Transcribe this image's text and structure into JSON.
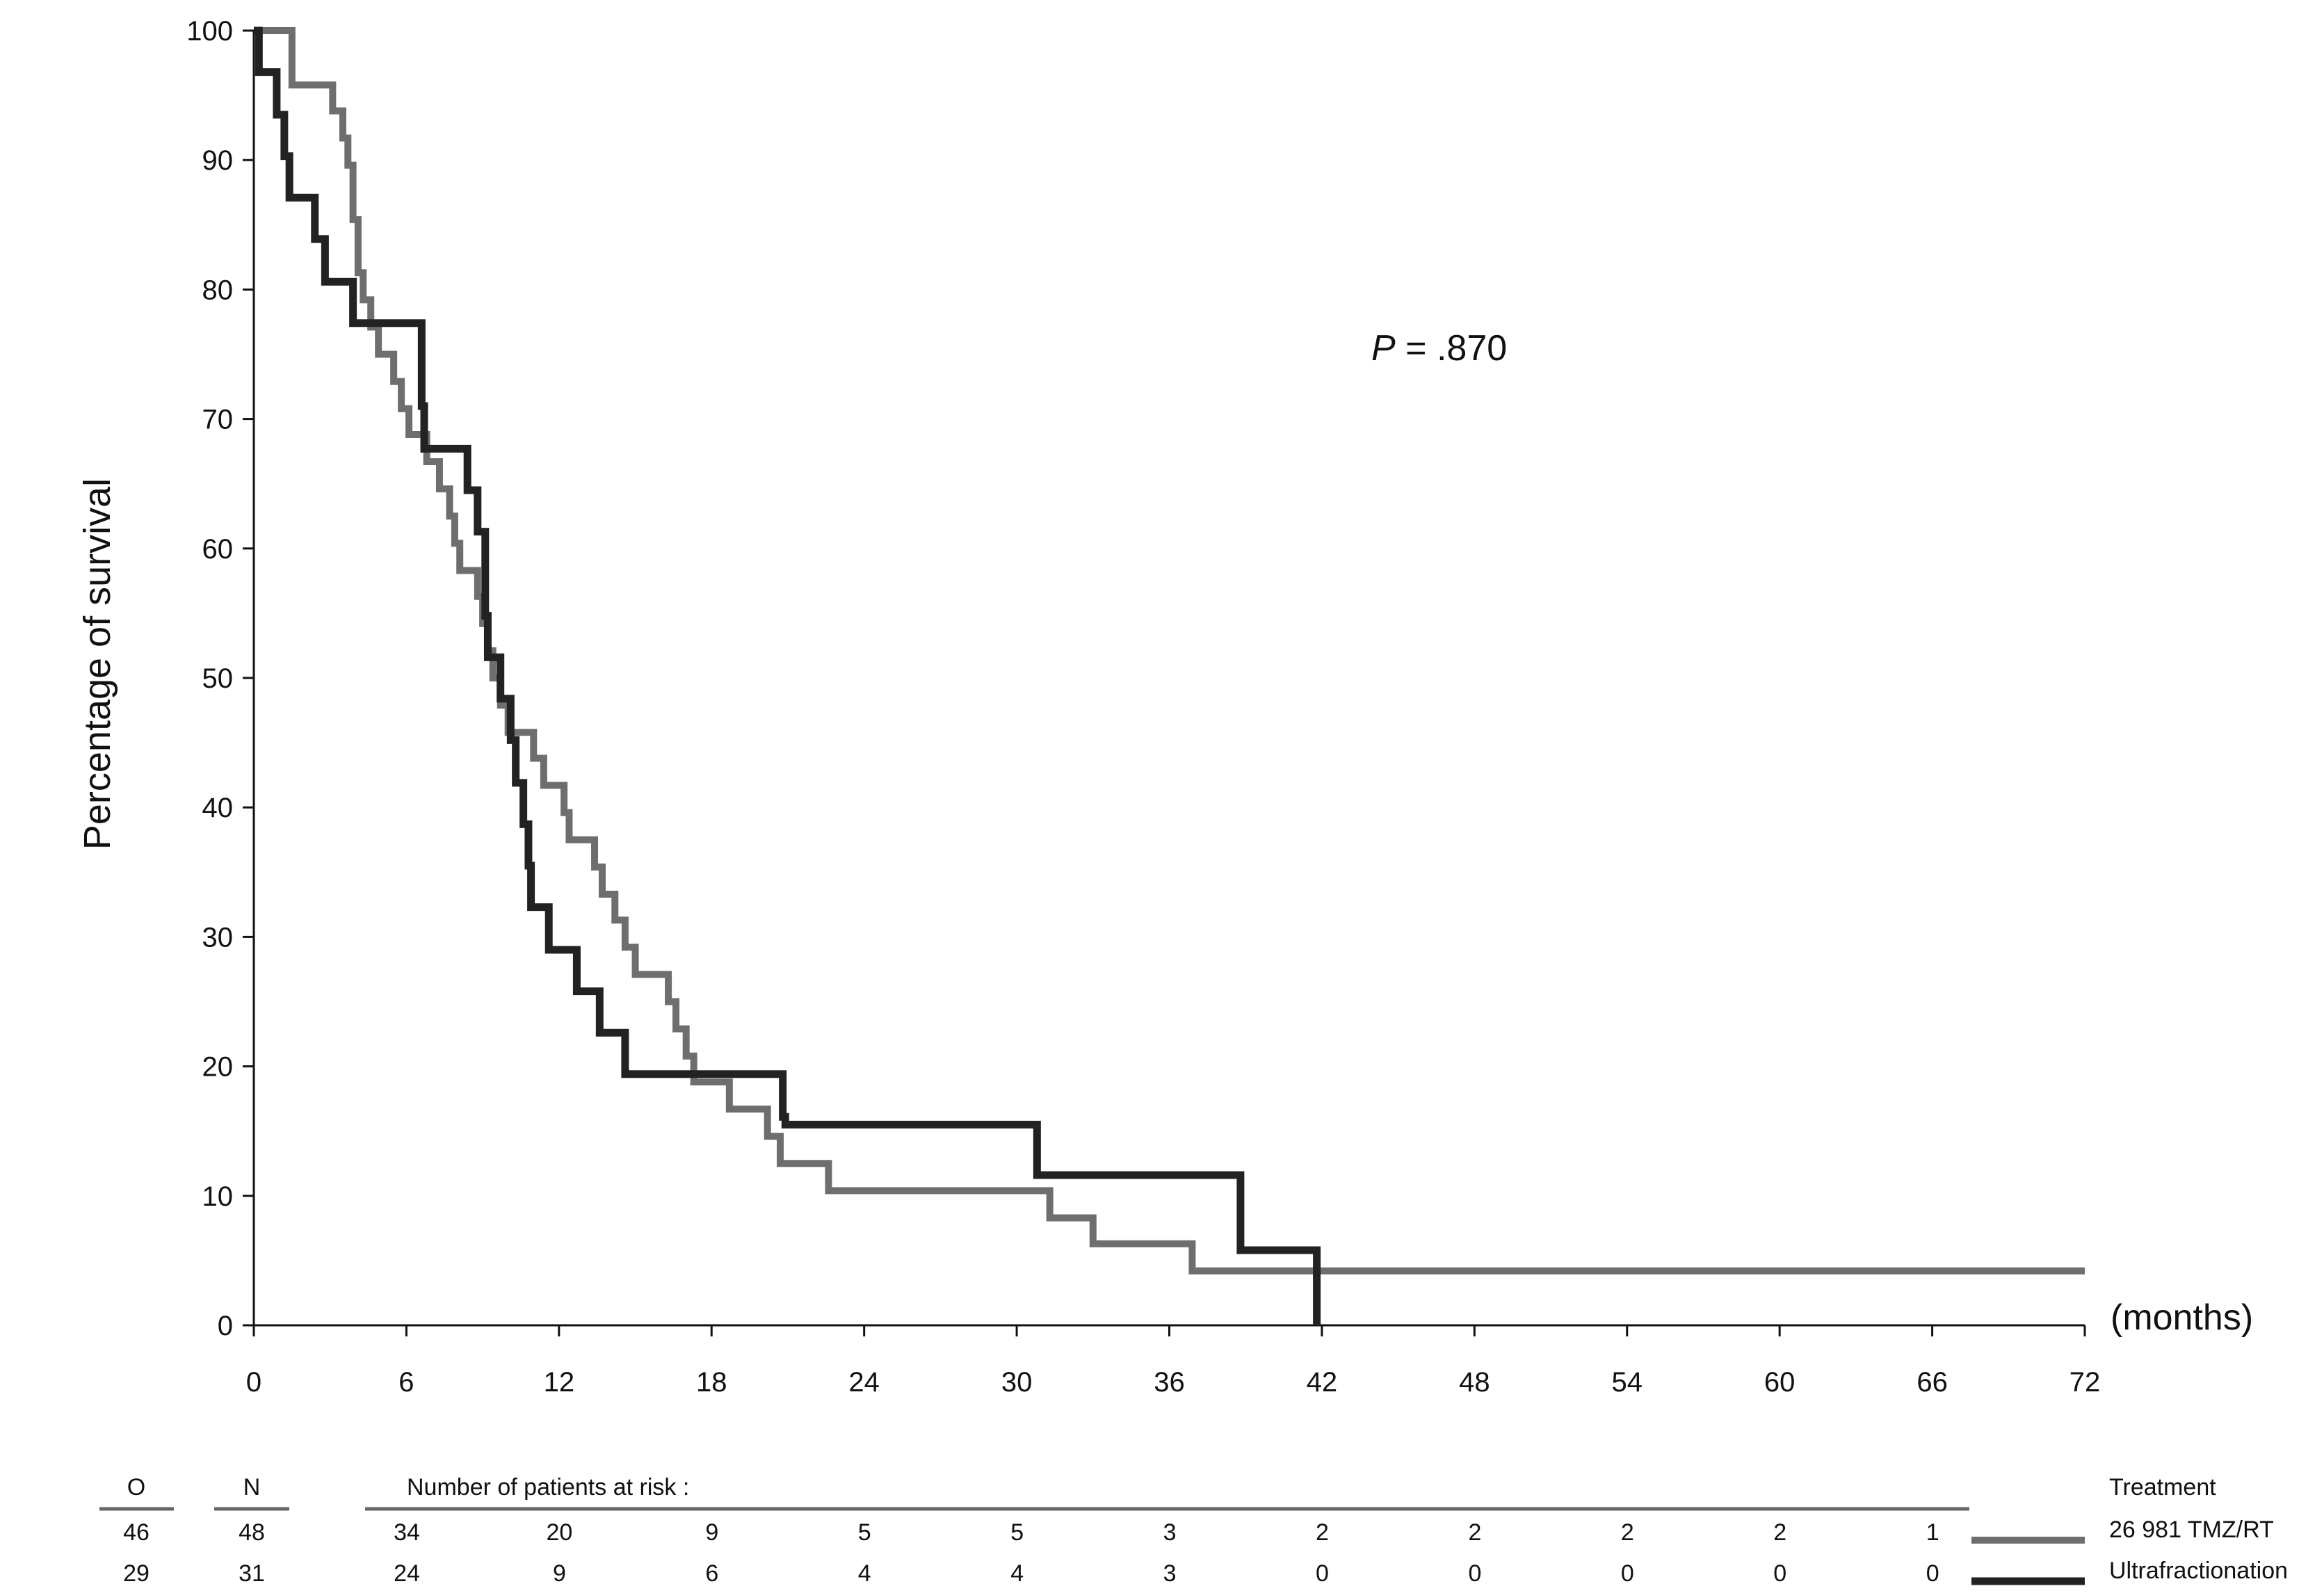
{
  "chart_data": {
    "type": "line",
    "ylabel": "Percentage of survival",
    "xunit_label": "(months)",
    "annotation": {
      "prefix": "P",
      "text": " = .870"
    },
    "xlim": [
      0,
      72
    ],
    "ylim": [
      0,
      100
    ],
    "xticks": [
      0,
      6,
      12,
      18,
      24,
      30,
      36,
      42,
      48,
      54,
      60,
      66,
      72
    ],
    "yticks": [
      0,
      10,
      20,
      30,
      40,
      50,
      60,
      70,
      80,
      90,
      100
    ],
    "grid": false,
    "legend_title": "Treatment",
    "series": [
      {
        "name": "26 981 TMZ/RT",
        "color": "#6e6e6e",
        "steps": [
          [
            0,
            100
          ],
          [
            1.5,
            95.8
          ],
          [
            3.1,
            93.8
          ],
          [
            3.5,
            91.7
          ],
          [
            3.7,
            89.6
          ],
          [
            3.9,
            85.4
          ],
          [
            4.1,
            81.3
          ],
          [
            4.3,
            79.2
          ],
          [
            4.6,
            77.1
          ],
          [
            4.9,
            75.0
          ],
          [
            5.5,
            72.9
          ],
          [
            5.8,
            70.8
          ],
          [
            6.1,
            68.8
          ],
          [
            6.8,
            66.7
          ],
          [
            7.3,
            64.6
          ],
          [
            7.7,
            62.5
          ],
          [
            7.9,
            60.4
          ],
          [
            8.1,
            58.3
          ],
          [
            8.8,
            56.3
          ],
          [
            9.0,
            54.2
          ],
          [
            9.2,
            52.1
          ],
          [
            9.4,
            50.0
          ],
          [
            9.7,
            47.9
          ],
          [
            10.0,
            45.8
          ],
          [
            11.0,
            43.8
          ],
          [
            11.4,
            41.7
          ],
          [
            12.2,
            39.6
          ],
          [
            12.4,
            37.5
          ],
          [
            13.4,
            35.4
          ],
          [
            13.7,
            33.3
          ],
          [
            14.2,
            31.3
          ],
          [
            14.6,
            29.2
          ],
          [
            15.0,
            27.1
          ],
          [
            16.3,
            25.0
          ],
          [
            16.6,
            22.9
          ],
          [
            17.0,
            20.8
          ],
          [
            17.3,
            18.8
          ],
          [
            18.7,
            16.7
          ],
          [
            20.2,
            14.6
          ],
          [
            20.7,
            12.5
          ],
          [
            22.6,
            10.4
          ],
          [
            31.3,
            8.3
          ],
          [
            33.0,
            6.3
          ],
          [
            36.9,
            4.2
          ],
          [
            72,
            4.2
          ]
        ]
      },
      {
        "name": "Ultrafractionation",
        "color": "#222222",
        "steps": [
          [
            0,
            100
          ],
          [
            0.2,
            96.8
          ],
          [
            0.9,
            93.5
          ],
          [
            1.2,
            90.3
          ],
          [
            1.4,
            87.1
          ],
          [
            2.4,
            83.9
          ],
          [
            2.8,
            80.6
          ],
          [
            3.9,
            77.4
          ],
          [
            6.6,
            71.0
          ],
          [
            6.7,
            67.7
          ],
          [
            8.4,
            64.5
          ],
          [
            8.8,
            61.3
          ],
          [
            9.1,
            54.8
          ],
          [
            9.2,
            51.6
          ],
          [
            9.7,
            48.4
          ],
          [
            10.1,
            45.2
          ],
          [
            10.3,
            41.9
          ],
          [
            10.6,
            38.7
          ],
          [
            10.8,
            35.5
          ],
          [
            10.9,
            32.3
          ],
          [
            11.6,
            29.0
          ],
          [
            12.7,
            25.8
          ],
          [
            13.6,
            22.6
          ],
          [
            14.6,
            19.4
          ],
          [
            20.8,
            16.1
          ],
          [
            20.9,
            15.5
          ],
          [
            30.8,
            11.6
          ],
          [
            38.8,
            5.8
          ],
          [
            41.8,
            0
          ]
        ]
      }
    ],
    "risk_table": {
      "col_O": "O",
      "col_N": "N",
      "title": "Number of patients at risk :",
      "rows": [
        {
          "O": "46",
          "N": "48",
          "counts": [
            "34",
            "20",
            "9",
            "5",
            "5",
            "3",
            "2",
            "2",
            "2",
            "2",
            "1"
          ]
        },
        {
          "O": "29",
          "N": "31",
          "counts": [
            "24",
            "9",
            "6",
            "4",
            "4",
            "3",
            "0",
            "0",
            "0",
            "0",
            "0"
          ]
        }
      ]
    }
  }
}
